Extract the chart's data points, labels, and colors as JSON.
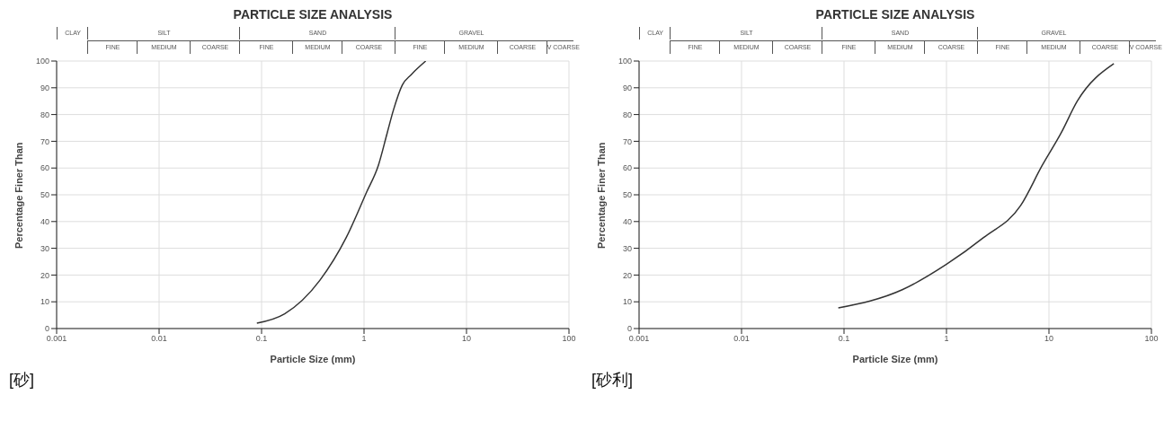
{
  "chart_data": [
    {
      "type": "line",
      "title": "PARTICLE SIZE ANALYSIS",
      "xlabel": "Particle Size (mm)",
      "ylabel": "Percentage Finer Than",
      "annotations": [
        "CLAY",
        "SILT",
        "SAND",
        "GRAVEL",
        "FINE",
        "MEDIUM",
        "COARSE",
        "FINE",
        "MEDIUM",
        "COARSE",
        "FINE",
        "MEDIUM",
        "COARSE",
        "V COARSE",
        "[砂]"
      ],
      "log": "x",
      "xlim": [
        0.001,
        100
      ],
      "xticks": [
        0.001,
        0.01,
        0.1,
        1,
        10,
        100
      ],
      "ylim": [
        0,
        100
      ],
      "yticks": [
        0,
        10,
        20,
        30,
        40,
        50,
        60,
        70,
        80,
        90,
        100
      ],
      "grid": true,
      "marker": "none",
      "line_style": "solid",
      "series": [
        {
          "color": "#333333",
          "x": [
            0.09,
            0.168,
            0.37,
            0.67,
            1.06,
            1.38,
            1.68,
            1.93,
            2.36,
            2.9,
            4.0
          ],
          "values": [
            2,
            5.5,
            18,
            34,
            51,
            61,
            73,
            81.5,
            91,
            95,
            100
          ]
        }
      ]
    },
    {
      "type": "line",
      "title": "PARTICLE SIZE ANALYSIS",
      "xlabel": "Particle Size (mm)",
      "ylabel": "Percentage Finer Than",
      "annotations": [
        "CLAY",
        "SILT",
        "SAND",
        "GRAVEL",
        "FINE",
        "MEDIUM",
        "COARSE",
        "FINE",
        "MEDIUM",
        "COARSE",
        "FINE",
        "MEDIUM",
        "COARSE",
        "V COARSE",
        "[砂利]"
      ],
      "log": "x",
      "xlim": [
        0.001,
        100
      ],
      "xticks": [
        0.001,
        0.01,
        0.1,
        1,
        10,
        100
      ],
      "ylim": [
        0,
        100
      ],
      "yticks": [
        0,
        10,
        20,
        30,
        40,
        50,
        60,
        70,
        80,
        90,
        100
      ],
      "grid": true,
      "marker": "none",
      "line_style": "solid",
      "series": [
        {
          "color": "#333333",
          "x": [
            0.088,
            0.37,
            1.0,
            2.3,
            5.3,
            8.6,
            13.1,
            18.9,
            43
          ],
          "values": [
            7.7,
            14.5,
            24,
            34,
            46,
            61,
            73,
            85,
            99
          ]
        }
      ]
    }
  ]
}
